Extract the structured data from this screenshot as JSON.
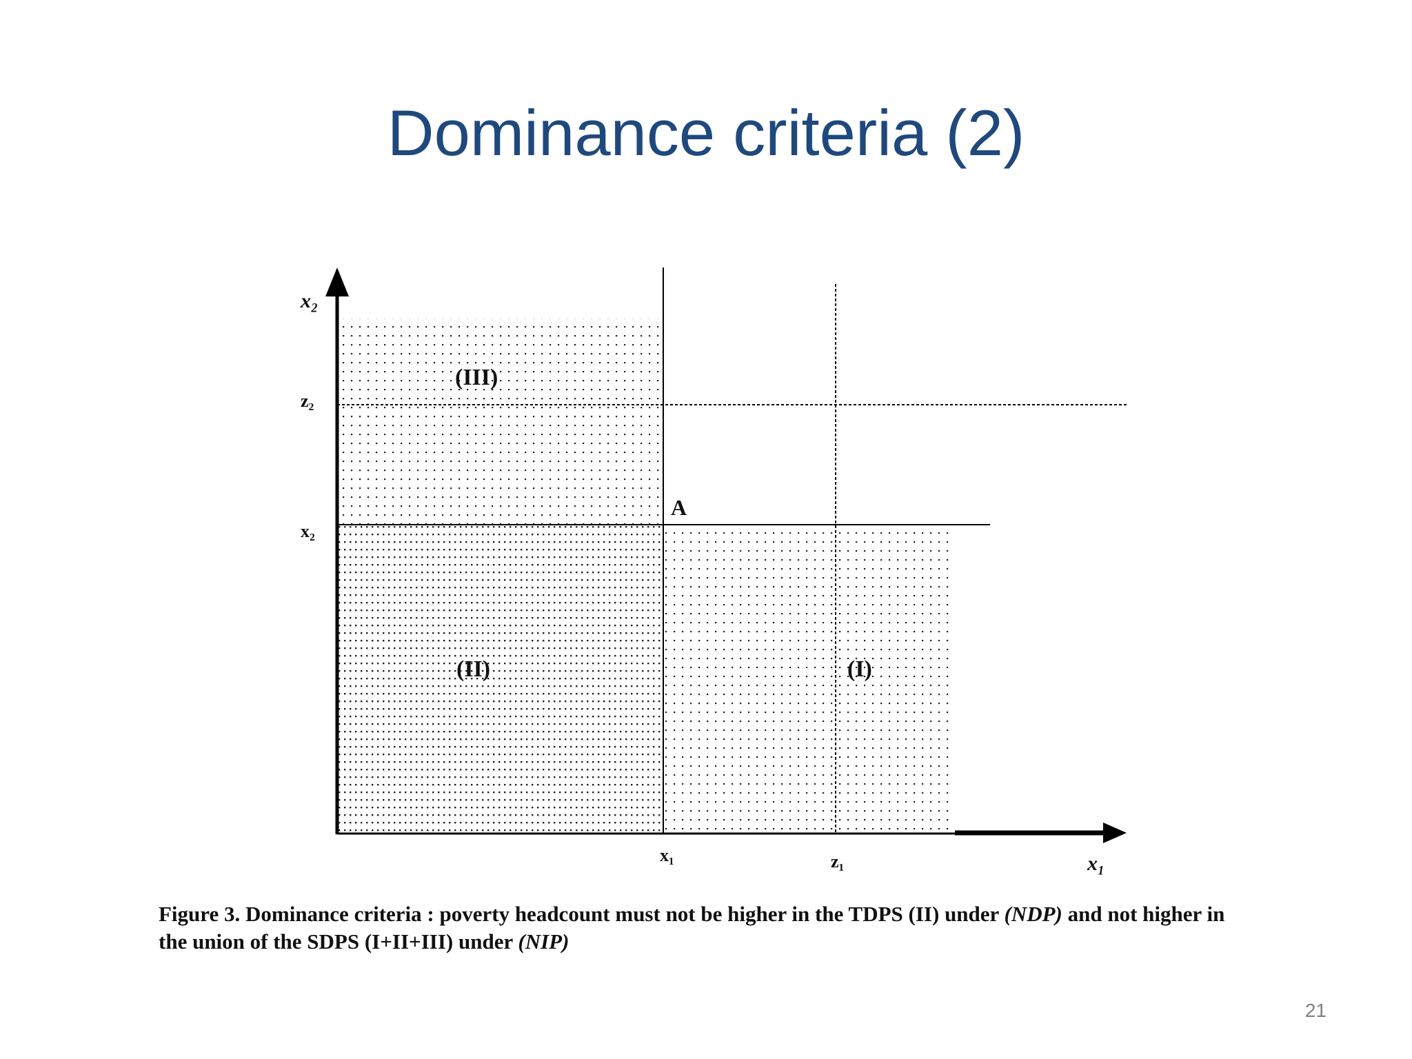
{
  "slide": {
    "title": "Dominance criteria (2)",
    "page_number": "21"
  },
  "diagram": {
    "axis_x_label": "x₁",
    "axis_y_label": "x₂",
    "tick_x_point": "x₁",
    "tick_x_threshold": "z₁",
    "tick_y_point": "x₂",
    "tick_y_threshold": "z₂",
    "point_label": "A",
    "region_1": "(I)",
    "region_2": "(II)",
    "region_3": "(III)"
  },
  "caption": {
    "part1": "Figure 3. Dominance criteria : poverty headcount must not be higher in  the TDPS (II) under ",
    "ndp": "(NDP)",
    "part2": " and not higher in the union of the SDPS (I+II+III) under ",
    "nip": "(NIP)"
  }
}
